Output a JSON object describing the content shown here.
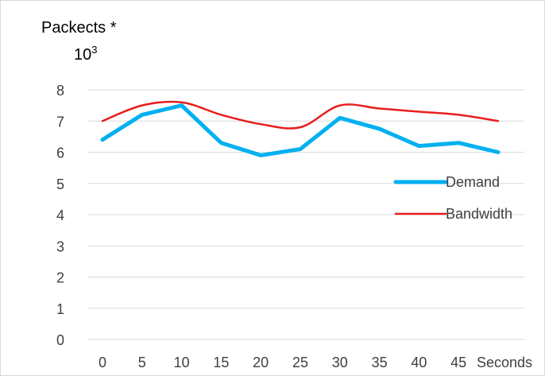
{
  "chart_data": {
    "type": "line",
    "ylabel_line1": "Packects *",
    "ylabel_line2_base": "10",
    "ylabel_line2_exp": "3",
    "xlabel": "Seconds",
    "categories": [
      "0",
      "5",
      "10",
      "15",
      "20",
      "25",
      "30",
      "35",
      "40",
      "45"
    ],
    "x": [
      0,
      5,
      10,
      15,
      20,
      25,
      30,
      35,
      40,
      45,
      50
    ],
    "y_ticks": [
      "0",
      "1",
      "2",
      "3",
      "4",
      "5",
      "6",
      "7",
      "8"
    ],
    "ylim": [
      0,
      8
    ],
    "grid": "horizontal",
    "legend_position": "right",
    "series": [
      {
        "name": "Demand",
        "color": "#00b0f0",
        "values": [
          6.4,
          7.2,
          7.5,
          6.3,
          5.9,
          6.1,
          7.1,
          6.75,
          6.2,
          6.3,
          6.0
        ]
      },
      {
        "name": "Bandwidth",
        "color": "#e81e1e",
        "values": [
          7.0,
          7.5,
          7.6,
          7.2,
          6.9,
          6.8,
          7.5,
          7.4,
          7.3,
          7.2,
          7.0
        ]
      }
    ]
  }
}
